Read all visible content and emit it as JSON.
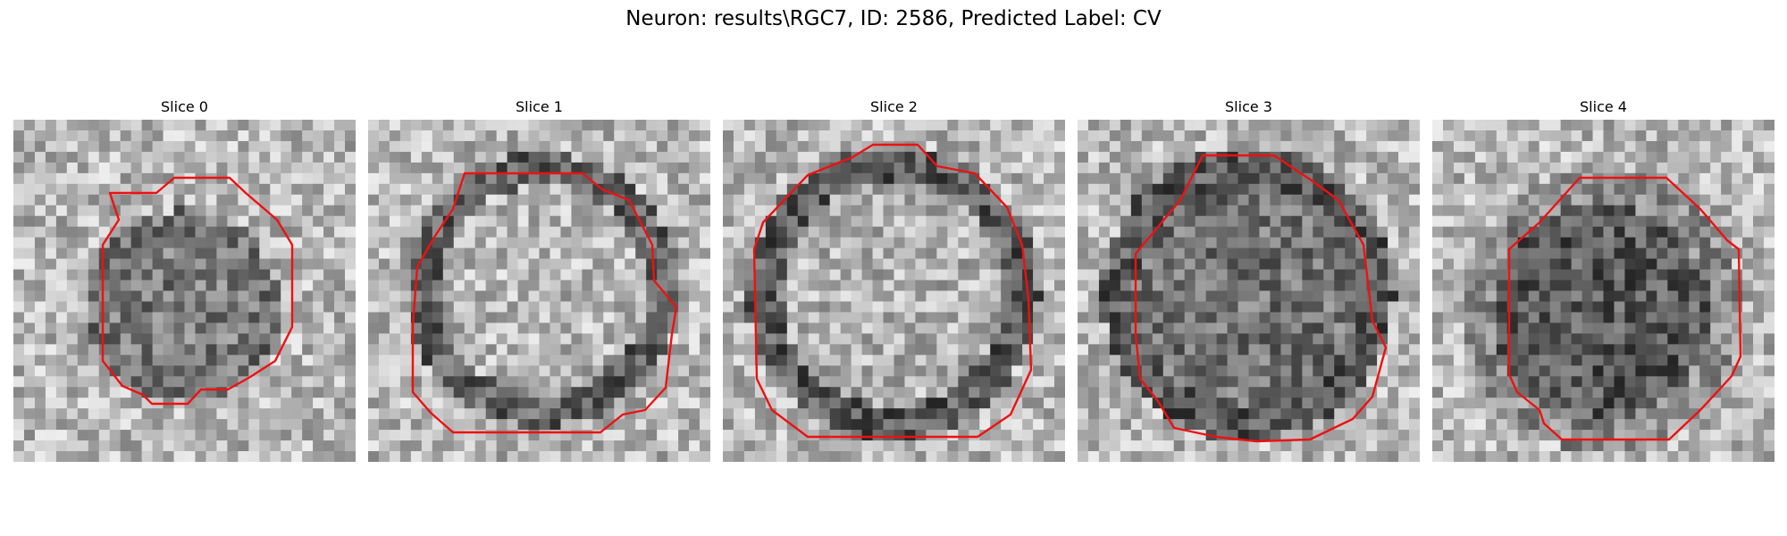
{
  "figure": {
    "title": "Neuron: results\\RGC7, ID: 2586, Predicted Label: CV"
  },
  "colors": {
    "background": "#ffffff",
    "contour": "#ee1111"
  },
  "slices": [
    {
      "label": "Slice 0"
    },
    {
      "label": "Slice 1"
    },
    {
      "label": "Slice 2"
    },
    {
      "label": "Slice 3"
    },
    {
      "label": "Slice 4"
    }
  ]
}
